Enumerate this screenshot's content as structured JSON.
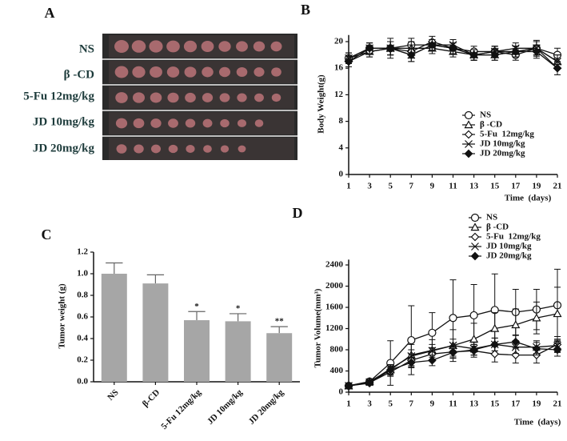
{
  "panel_a": {
    "label": "A",
    "rows": [
      "NS",
      "β -CD",
      "5-Fu 12mg/kg",
      "JD 10mg/kg",
      "JD 20mg/kg"
    ]
  },
  "chart_data": [
    {
      "type": "line",
      "panel_label": "B",
      "ylabel": "Body Weight(g)",
      "xlabel": "Time  (days)",
      "x": [
        1,
        3,
        5,
        7,
        9,
        11,
        13,
        15,
        17,
        19,
        21
      ],
      "xlim": [
        1,
        21
      ],
      "xticks": [
        1,
        3,
        5,
        7,
        9,
        11,
        13,
        15,
        17,
        19,
        21
      ],
      "ylim": [
        0,
        21
      ],
      "yticks": [
        0,
        4,
        8,
        12,
        16,
        20
      ],
      "series": [
        {
          "name": "NS",
          "color": "#111111",
          "marker": "circle",
          "values": [
            17.5,
            19,
            19,
            19.5,
            19.5,
            19,
            18.5,
            18.5,
            18,
            19,
            18
          ],
          "errors": [
            0.8,
            0.8,
            1,
            1,
            0.8,
            0.8,
            0.8,
            0.8,
            0.8,
            1.2,
            1
          ]
        },
        {
          "name": "β -CD",
          "color": "#111111",
          "marker": "triangle",
          "values": [
            17.5,
            18.5,
            19,
            19,
            19,
            18.5,
            18,
            18,
            18.5,
            19,
            17
          ],
          "errors": [
            0.8,
            0.8,
            1,
            1,
            0.8,
            0.8,
            0.8,
            0.8,
            0.8,
            1,
            1
          ]
        },
        {
          "name": "5-Fu  12mg/kg",
          "color": "#111111",
          "marker": "diamond",
          "values": [
            17,
            18.5,
            19,
            18.5,
            20,
            19,
            18,
            18.5,
            18.5,
            19,
            16
          ],
          "errors": [
            0.8,
            0.8,
            1.5,
            1,
            0.8,
            0.8,
            0.8,
            0.8,
            0.8,
            1,
            1
          ]
        },
        {
          "name": "JD 10mg/kg",
          "color": "#111111",
          "marker": "x",
          "values": [
            17.5,
            19,
            19,
            18,
            19.5,
            19.5,
            18,
            18.5,
            19,
            19,
            17
          ],
          "errors": [
            0.8,
            0.8,
            1,
            1,
            0.8,
            0.8,
            0.8,
            0.8,
            0.8,
            1,
            1
          ]
        },
        {
          "name": "JD 20mg/kg",
          "color": "#111111",
          "marker": "diamond-filled",
          "values": [
            17,
            19,
            19,
            18,
            19.5,
            19,
            18,
            18,
            18.5,
            18.5,
            16
          ],
          "errors": [
            0.8,
            0.8,
            1,
            1,
            0.8,
            0.8,
            0.8,
            0.8,
            0.8,
            1,
            1
          ]
        }
      ]
    },
    {
      "type": "bar",
      "panel_label": "C",
      "ylabel": "Tumor weight (g)",
      "categories": [
        "NS",
        "β-CD",
        "5-Fu 12mg/kg",
        "JD 10mg/kg",
        "JD 20mg/kg"
      ],
      "values": [
        1.0,
        0.91,
        0.57,
        0.56,
        0.45
      ],
      "errors": [
        0.1,
        0.08,
        0.08,
        0.07,
        0.06
      ],
      "significance": [
        null,
        null,
        "*",
        "*",
        "**"
      ],
      "color": "#a6a6a6",
      "ylim": [
        0,
        1.2
      ],
      "yticks": [
        {
          "value": 0,
          "label": "0.0"
        },
        0.2,
        0.4,
        0.6,
        0.8,
        {
          "value": 1,
          "label": "1.0"
        },
        1.2
      ]
    },
    {
      "type": "line",
      "panel_label": "D",
      "ylabel": "Tumor Volume(mm³)",
      "xlabel": "Time  (days)",
      "x": [
        1,
        3,
        5,
        7,
        9,
        11,
        13,
        15,
        17,
        19,
        21
      ],
      "xlim": [
        1,
        21
      ],
      "xticks": [
        1,
        3,
        5,
        7,
        9,
        11,
        13,
        15,
        17,
        19,
        21
      ],
      "ylim": [
        0,
        2500
      ],
      "yticks": [
        0,
        400,
        800,
        1200,
        1600,
        2000,
        2400
      ],
      "series": [
        {
          "name": "NS",
          "color": "#111111",
          "marker": "circle",
          "values": [
            120,
            200,
            550,
            980,
            1120,
            1400,
            1450,
            1550,
            1510,
            1560,
            1640
          ],
          "errors": [
            30,
            50,
            420,
            650,
            380,
            720,
            580,
            680,
            430,
            380,
            680
          ]
        },
        {
          "name": "β -CD",
          "color": "#111111",
          "marker": "triangle",
          "values": [
            120,
            200,
            420,
            700,
            790,
            880,
            1000,
            1200,
            1270,
            1400,
            1480
          ],
          "errors": [
            30,
            40,
            100,
            200,
            200,
            300,
            300,
            300,
            300,
            300,
            500
          ]
        },
        {
          "name": "5-Fu  12mg/kg",
          "color": "#111111",
          "marker": "diamond",
          "values": [
            120,
            180,
            380,
            600,
            720,
            760,
            780,
            720,
            700,
            700,
            900
          ],
          "errors": [
            30,
            40,
            80,
            120,
            120,
            120,
            120,
            150,
            150,
            150,
            150
          ]
        },
        {
          "name": "JD 10mg/kg",
          "color": "#111111",
          "marker": "x",
          "values": [
            120,
            190,
            440,
            680,
            780,
            880,
            820,
            900,
            850,
            850,
            880
          ],
          "errors": [
            30,
            40,
            80,
            120,
            120,
            120,
            120,
            120,
            120,
            120,
            120
          ]
        },
        {
          "name": "JD 20mg/kg",
          "color": "#111111",
          "marker": "diamond-filled",
          "values": [
            120,
            170,
            420,
            560,
            600,
            750,
            800,
            900,
            950,
            820,
            800
          ],
          "errors": [
            30,
            40,
            80,
            100,
            100,
            100,
            100,
            120,
            120,
            120,
            120
          ]
        }
      ]
    }
  ]
}
